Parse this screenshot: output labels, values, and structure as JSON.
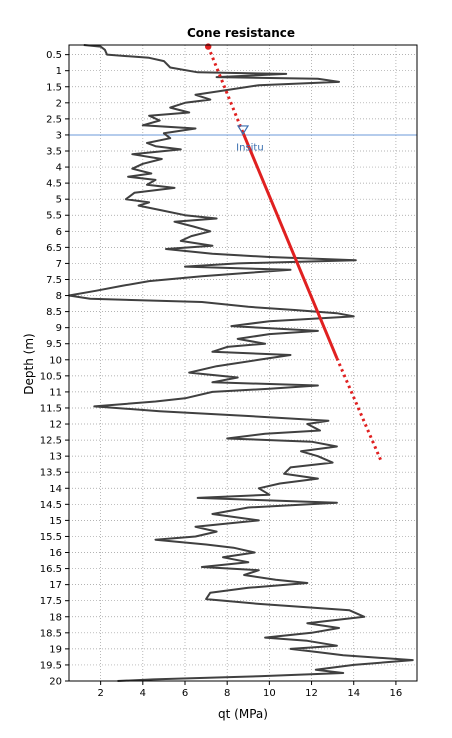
{
  "chart_data": {
    "type": "line",
    "title": "Cone resistance",
    "xlabel": "qt (MPa)",
    "ylabel": "Depth (m)",
    "xlim": [
      0.5,
      17
    ],
    "ylim": [
      0.2,
      20
    ],
    "y_inverted": true,
    "grid": true,
    "x_ticks": [
      {
        "value": 2,
        "label": "2"
      },
      {
        "value": 4,
        "label": "4"
      },
      {
        "value": 6,
        "label": "6"
      },
      {
        "value": 8,
        "label": "8"
      },
      {
        "value": 10,
        "label": "10"
      },
      {
        "value": 12,
        "label": "12"
      },
      {
        "value": 14,
        "label": "14"
      },
      {
        "value": 16,
        "label": "16"
      }
    ],
    "y_ticks": [
      {
        "value": 0.5,
        "label": "0.5"
      },
      {
        "value": 1,
        "label": "1"
      },
      {
        "value": 1.5,
        "label": "1.5"
      },
      {
        "value": 2,
        "label": "2"
      },
      {
        "value": 2.5,
        "label": "2.5"
      },
      {
        "value": 3,
        "label": "3"
      },
      {
        "value": 3.5,
        "label": "3.5"
      },
      {
        "value": 4,
        "label": "4"
      },
      {
        "value": 4.5,
        "label": "4.5"
      },
      {
        "value": 5,
        "label": "5"
      },
      {
        "value": 5.5,
        "label": "5.5"
      },
      {
        "value": 6,
        "label": "6"
      },
      {
        "value": 6.5,
        "label": "6.5"
      },
      {
        "value": 7,
        "label": "7"
      },
      {
        "value": 7.5,
        "label": "7.5"
      },
      {
        "value": 8,
        "label": "8"
      },
      {
        "value": 8.5,
        "label": "8.5"
      },
      {
        "value": 9,
        "label": "9"
      },
      {
        "value": 9.5,
        "label": "9.5"
      },
      {
        "value": 10,
        "label": "10"
      },
      {
        "value": 10.5,
        "label": "10.5"
      },
      {
        "value": 11,
        "label": "11"
      },
      {
        "value": 11.5,
        "label": "11.5"
      },
      {
        "value": 12,
        "label": "12"
      },
      {
        "value": 12.5,
        "label": "12.5"
      },
      {
        "value": 13,
        "label": "13"
      },
      {
        "value": 13.5,
        "label": "13.5"
      },
      {
        "value": 14,
        "label": "14"
      },
      {
        "value": 14.5,
        "label": "14.5"
      },
      {
        "value": 15,
        "label": "15"
      },
      {
        "value": 15.5,
        "label": "15.5"
      },
      {
        "value": 16,
        "label": "16"
      },
      {
        "value": 16.5,
        "label": "16.5"
      },
      {
        "value": 17,
        "label": "17"
      },
      {
        "value": 17.5,
        "label": "17.5"
      },
      {
        "value": 18,
        "label": "18"
      },
      {
        "value": 18.5,
        "label": "18.5"
      },
      {
        "value": 19,
        "label": "19"
      },
      {
        "value": 19.5,
        "label": "19.5"
      },
      {
        "value": 20,
        "label": "20"
      }
    ],
    "series": [
      {
        "color": "#404040",
        "style": "solid",
        "points": [
          [
            1.2,
            0.2
          ],
          [
            2.0,
            0.25
          ],
          [
            2.2,
            0.35
          ],
          [
            2.3,
            0.5
          ],
          [
            4.3,
            0.6
          ],
          [
            5.0,
            0.7
          ],
          [
            5.3,
            0.9
          ],
          [
            6.6,
            1.05
          ],
          [
            10.8,
            1.1
          ],
          [
            7.5,
            1.2
          ],
          [
            12.3,
            1.25
          ],
          [
            13.3,
            1.35
          ],
          [
            9.5,
            1.45
          ],
          [
            8.0,
            1.6
          ],
          [
            6.5,
            1.75
          ],
          [
            7.2,
            1.9
          ],
          [
            6.0,
            2.0
          ],
          [
            5.3,
            2.15
          ],
          [
            6.2,
            2.3
          ],
          [
            4.3,
            2.4
          ],
          [
            4.8,
            2.55
          ],
          [
            4.0,
            2.7
          ],
          [
            6.5,
            2.8
          ],
          [
            5.0,
            2.95
          ],
          [
            5.3,
            3.1
          ],
          [
            4.2,
            3.25
          ],
          [
            4.6,
            3.35
          ],
          [
            5.8,
            3.45
          ],
          [
            3.5,
            3.6
          ],
          [
            4.9,
            3.75
          ],
          [
            4.0,
            3.9
          ],
          [
            3.5,
            4.05
          ],
          [
            4.4,
            4.2
          ],
          [
            3.3,
            4.3
          ],
          [
            4.6,
            4.4
          ],
          [
            4.2,
            4.55
          ],
          [
            5.5,
            4.65
          ],
          [
            3.6,
            4.8
          ],
          [
            3.2,
            5.0
          ],
          [
            4.3,
            5.1
          ],
          [
            3.8,
            5.2
          ],
          [
            4.9,
            5.35
          ],
          [
            6.0,
            5.5
          ],
          [
            7.5,
            5.6
          ],
          [
            5.5,
            5.7
          ],
          [
            6.4,
            5.85
          ],
          [
            7.2,
            6.0
          ],
          [
            6.3,
            6.15
          ],
          [
            5.8,
            6.3
          ],
          [
            7.3,
            6.45
          ],
          [
            5.1,
            6.55
          ],
          [
            7.3,
            6.7
          ],
          [
            10.0,
            6.8
          ],
          [
            14.1,
            6.9
          ],
          [
            8.5,
            7.0
          ],
          [
            6.0,
            7.1
          ],
          [
            11.0,
            7.2
          ],
          [
            8.8,
            7.3
          ],
          [
            6.8,
            7.4
          ],
          [
            4.3,
            7.55
          ],
          [
            3.0,
            7.7
          ],
          [
            1.8,
            7.85
          ],
          [
            0.5,
            8.0
          ],
          [
            1.5,
            8.1
          ],
          [
            6.8,
            8.2
          ],
          [
            9.0,
            8.35
          ],
          [
            11.2,
            8.45
          ],
          [
            13.2,
            8.55
          ],
          [
            14.0,
            8.65
          ],
          [
            10.0,
            8.8
          ],
          [
            8.2,
            8.95
          ],
          [
            12.3,
            9.1
          ],
          [
            10.0,
            9.2
          ],
          [
            8.5,
            9.35
          ],
          [
            9.8,
            9.5
          ],
          [
            8.0,
            9.6
          ],
          [
            7.3,
            9.75
          ],
          [
            11.0,
            9.85
          ],
          [
            9.5,
            10.0
          ],
          [
            7.5,
            10.2
          ],
          [
            6.2,
            10.4
          ],
          [
            8.5,
            10.55
          ],
          [
            7.3,
            10.7
          ],
          [
            12.3,
            10.8
          ],
          [
            10.0,
            10.9
          ],
          [
            7.3,
            11.0
          ],
          [
            6.0,
            11.2
          ],
          [
            4.6,
            11.3
          ],
          [
            1.7,
            11.45
          ],
          [
            4.8,
            11.6
          ],
          [
            9.0,
            11.75
          ],
          [
            12.8,
            11.9
          ],
          [
            11.8,
            12.0
          ],
          [
            12.4,
            12.2
          ],
          [
            9.8,
            12.3
          ],
          [
            8.0,
            12.45
          ],
          [
            12.0,
            12.55
          ],
          [
            13.2,
            12.7
          ],
          [
            11.5,
            12.85
          ],
          [
            12.3,
            13.0
          ],
          [
            13.0,
            13.2
          ],
          [
            11.0,
            13.35
          ],
          [
            10.7,
            13.55
          ],
          [
            12.3,
            13.7
          ],
          [
            10.5,
            13.85
          ],
          [
            9.5,
            14.0
          ],
          [
            10.0,
            14.2
          ],
          [
            6.6,
            14.3
          ],
          [
            13.2,
            14.45
          ],
          [
            9.0,
            14.6
          ],
          [
            7.3,
            14.8
          ],
          [
            9.5,
            15.0
          ],
          [
            6.5,
            15.2
          ],
          [
            7.5,
            15.35
          ],
          [
            6.5,
            15.5
          ],
          [
            4.6,
            15.6
          ],
          [
            7.0,
            15.75
          ],
          [
            8.3,
            15.85
          ],
          [
            9.3,
            16.0
          ],
          [
            7.8,
            16.15
          ],
          [
            9.0,
            16.3
          ],
          [
            6.8,
            16.45
          ],
          [
            9.5,
            16.55
          ],
          [
            8.8,
            16.7
          ],
          [
            10.3,
            16.85
          ],
          [
            11.8,
            16.95
          ],
          [
            9.0,
            17.1
          ],
          [
            7.2,
            17.25
          ],
          [
            7.0,
            17.45
          ],
          [
            9.5,
            17.6
          ],
          [
            13.8,
            17.8
          ],
          [
            14.5,
            18.0
          ],
          [
            11.8,
            18.2
          ],
          [
            13.3,
            18.35
          ],
          [
            12.0,
            18.5
          ],
          [
            9.8,
            18.65
          ],
          [
            11.8,
            18.75
          ],
          [
            13.2,
            18.9
          ],
          [
            11.0,
            19.0
          ],
          [
            12.3,
            19.1
          ],
          [
            13.5,
            19.2
          ],
          [
            16.8,
            19.35
          ],
          [
            14.0,
            19.5
          ],
          [
            12.2,
            19.65
          ],
          [
            13.5,
            19.75
          ],
          [
            9.5,
            19.85
          ],
          [
            4.5,
            19.95
          ],
          [
            2.8,
            20.0
          ]
        ]
      },
      {
        "color": "#e02020",
        "style": "solid",
        "points": [
          [
            8.7,
            2.85
          ],
          [
            13.2,
            9.95
          ]
        ]
      },
      {
        "color": "#e02020",
        "style": "dotted",
        "points": [
          [
            7.1,
            0.25
          ],
          [
            8.7,
            2.85
          ]
        ]
      },
      {
        "color": "#e02020",
        "style": "dotted",
        "points": [
          [
            13.2,
            9.95
          ],
          [
            15.3,
            13.15
          ]
        ]
      }
    ],
    "reference_lines": [
      {
        "orientation": "horizontal",
        "value": 3,
        "color": "#6b9ad8"
      }
    ],
    "annotations": [
      {
        "text": "Insitu",
        "x": 8.9,
        "y": 3.3,
        "color": "#3a6fb0"
      }
    ]
  }
}
